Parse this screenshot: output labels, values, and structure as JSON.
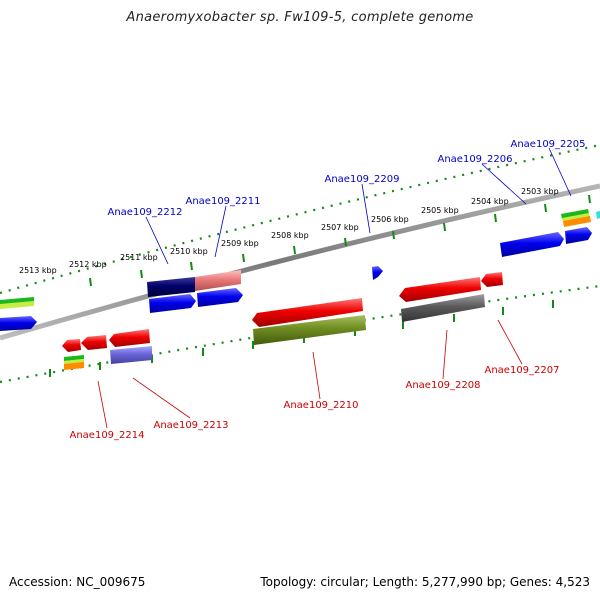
{
  "title": "Anaeromyxobacter sp. Fw109-5, complete genome",
  "footer": {
    "accession": "Accession: NC_009675",
    "topology": "Topology: circular; Length: 5,277,990 bp; Genes: 4,523"
  },
  "scale_labels": [
    "2503 kbp",
    "2504 kbp",
    "2505 kbp",
    "2506 kbp",
    "2507 kbp",
    "2508 kbp",
    "2509 kbp",
    "2510 kbp",
    "2511 kbp",
    "2512 kbp",
    "2513 kbp"
  ],
  "gene_labels_top": [
    "Anae109_2205",
    "Anae109_2206",
    "Anae109_2209",
    "Anae109_2211",
    "Anae109_2212"
  ],
  "gene_labels_bottom": [
    "Anae109_2207",
    "Anae109_2208",
    "Anae109_2210",
    "Anae109_2213",
    "Anae109_2214"
  ],
  "colors": {
    "top_label": "#0000cc",
    "bottom_label": "#cc0000",
    "tick": "#138a13",
    "backbone": "#808080"
  }
}
